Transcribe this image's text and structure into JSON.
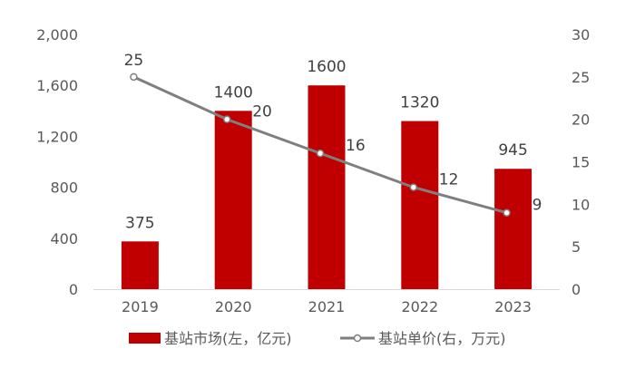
{
  "chart_data": {
    "type": "bar+line",
    "categories": [
      "2019",
      "2020",
      "2021",
      "2022",
      "2023"
    ],
    "series": [
      {
        "name": "基站市场(左，亿元)",
        "type": "bar",
        "axis": "left",
        "values": [
          375,
          1400,
          1600,
          1320,
          945
        ],
        "color": "#c00000"
      },
      {
        "name": "基站单价(右，万元)",
        "type": "line",
        "axis": "right",
        "values": [
          25,
          20,
          16,
          12,
          9
        ],
        "color": "#7f7f7f"
      }
    ],
    "y_left": {
      "min": 0,
      "max": 2000,
      "ticks": [
        0,
        400,
        800,
        1200,
        1600,
        2000
      ],
      "tick_labels": [
        "0",
        "400",
        "800",
        "1,200",
        "1,600",
        "2,000"
      ]
    },
    "y_right": {
      "min": 0,
      "max": 30,
      "ticks": [
        0,
        5,
        10,
        15,
        20,
        25,
        30
      ],
      "tick_labels": [
        "0",
        "5",
        "10",
        "15",
        "20",
        "25",
        "30"
      ]
    },
    "grid": false,
    "legend_position": "bottom-center",
    "bar_data_labels": [
      "375",
      "1400",
      "1600",
      "1320",
      "945"
    ],
    "line_data_labels": [
      "25",
      "20",
      "16",
      "12",
      "9"
    ]
  }
}
